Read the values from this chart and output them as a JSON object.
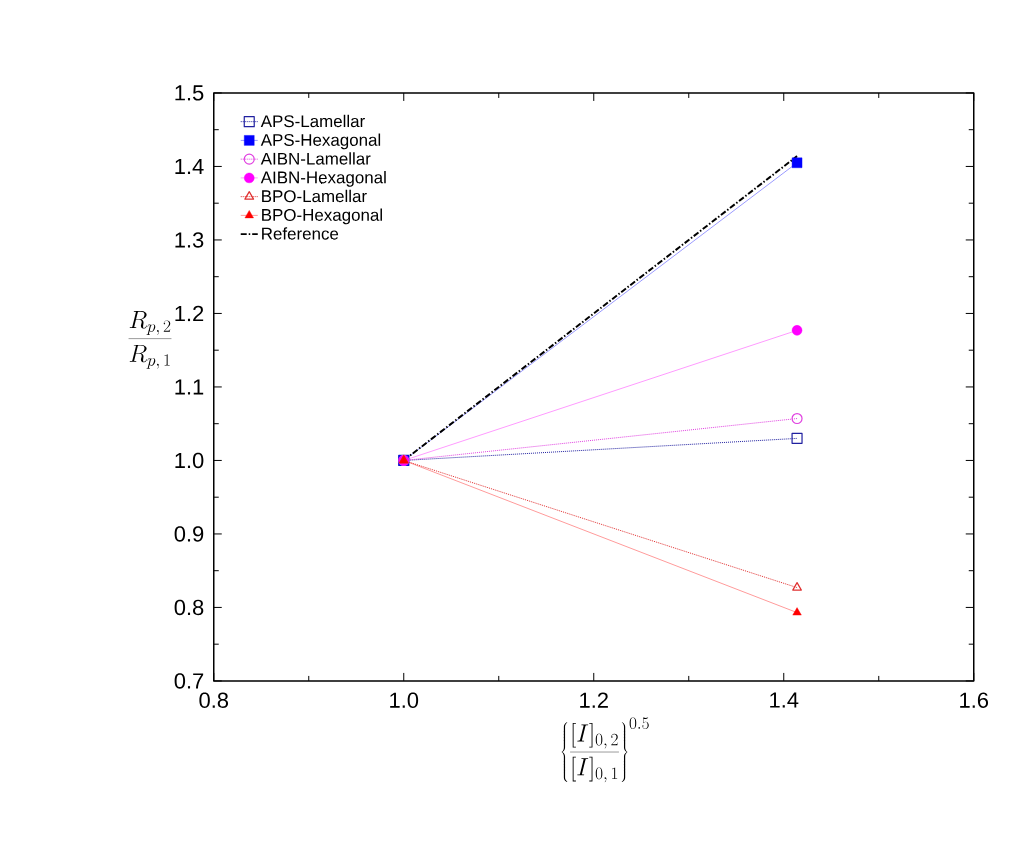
{
  "chart_data": {
    "type": "line",
    "xlabel": "\\left\\{\\frac{[I]_{0,\\,2}}{[I]_{0,\\,1}}\\right\\}^{0.5}",
    "ylabel": "\\frac{R_{p,\\,2}}{R_{p,\\,1}}",
    "x": [
      1.0,
      1.414
    ],
    "xlim": [
      0.8,
      1.6
    ],
    "xticks": [
      {
        "value": 0.8,
        "label": "0.8"
      },
      {
        "value": 1.0,
        "label": "1.0"
      },
      {
        "value": 1.2,
        "label": "1.2"
      },
      {
        "value": 1.4,
        "label": "1.4"
      },
      {
        "value": 1.6,
        "label": "1.6"
      }
    ],
    "ylim": [
      0.7,
      1.5
    ],
    "yticks": [
      {
        "value": 0.7,
        "label": "0.7"
      },
      {
        "value": 0.8,
        "label": "0.8"
      },
      {
        "value": 0.9,
        "label": "0.9"
      },
      {
        "value": 1.0,
        "label": "1.0"
      },
      {
        "value": 1.1,
        "label": "1.1"
      },
      {
        "value": 1.2,
        "label": "1.2"
      },
      {
        "value": 1.3,
        "label": "1.3"
      },
      {
        "value": 1.4,
        "label": "1.4"
      },
      {
        "value": 1.5,
        "label": "1.5"
      }
    ],
    "grid": false,
    "legend": "top left",
    "series": [
      {
        "name": "APS-Lamellar",
        "color": "#2020a0",
        "values": [
          1.0,
          1.03
        ],
        "marker": "square",
        "line_style": "dotted"
      },
      {
        "name": "APS-Hexagonal",
        "color": "#0000ff",
        "values": [
          1.0,
          1.405
        ],
        "marker": "square",
        "line_style": "solid"
      },
      {
        "name": "AIBN-Lamellar",
        "color": "#e040e0",
        "values": [
          1.0,
          1.057
        ],
        "marker": "circle",
        "line_style": "dotted"
      },
      {
        "name": "AIBN-Hexagonal",
        "color": "#ff00ff",
        "values": [
          1.0,
          1.177
        ],
        "marker": "circle",
        "line_style": "solid"
      },
      {
        "name": "BPO-Lamellar",
        "color": "#e03030",
        "values": [
          1.0,
          0.827
        ],
        "marker": "triangle",
        "line_style": "dotted"
      },
      {
        "name": "BPO-Hexagonal",
        "color": "#ff0000",
        "values": [
          1.0,
          0.793
        ],
        "marker": "triangle",
        "line_style": "solid"
      },
      {
        "name": "Reference",
        "color": "#000000",
        "values": [
          1.0,
          1.414
        ],
        "marker": "none",
        "line_style": "dashdot"
      }
    ]
  }
}
